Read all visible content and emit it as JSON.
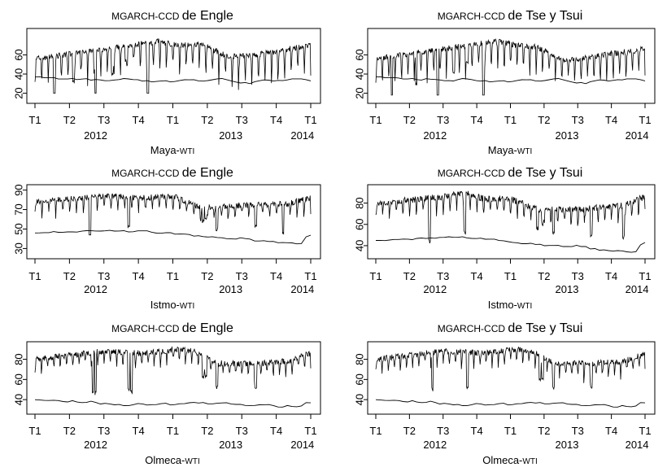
{
  "chart_data": [
    {
      "type": "line",
      "title": {
        "prefix": "MGARCH-CCD",
        "suffix": "de Engle"
      },
      "xlabel": {
        "prefix": "Maya-",
        "suffix": "WTI"
      },
      "x_ticks": [
        "T1",
        "T2",
        "T3",
        "T4",
        "T1",
        "T2",
        "T3",
        "T4",
        "T1"
      ],
      "year_labels": [
        "2012",
        "2013",
        "2014"
      ],
      "y_ticks": [
        20,
        40,
        60
      ],
      "ylim": [
        12,
        85
      ],
      "series": [
        {
          "name": "upper",
          "base": 62,
          "amp": 34,
          "floor": 8,
          "cycles": 42,
          "events": [
            [
              7,
              12
            ],
            [
              14,
              30
            ],
            [
              22,
              10
            ],
            [
              28,
              38
            ],
            [
              33,
              52
            ],
            [
              41,
              14
            ]
          ],
          "trend": [
            [
              0,
              -6
            ],
            [
              45,
              12
            ],
            [
              52,
              8
            ],
            [
              60,
              10
            ],
            [
              70,
              -4
            ],
            [
              80,
              -2
            ],
            [
              100,
              8
            ]
          ],
          "clampTop": 82,
          "seed": 3
        },
        {
          "name": "lower",
          "values": [
            37,
            37,
            36,
            36,
            36,
            35,
            35,
            35,
            35,
            34,
            35,
            35,
            34,
            34,
            34,
            33,
            33,
            34,
            34,
            35,
            35,
            34,
            34,
            33,
            33,
            32,
            32,
            33,
            33,
            32,
            32,
            33,
            34,
            34,
            34,
            33,
            33,
            33,
            34,
            35,
            35,
            34,
            33,
            32,
            31,
            31,
            30,
            32,
            33,
            34,
            34,
            33,
            33,
            33,
            34,
            35,
            35,
            35,
            34,
            33
          ]
        }
      ]
    },
    {
      "type": "line",
      "title": {
        "prefix": "MGARCH-CCD",
        "suffix": "de Tse y Tsui"
      },
      "xlabel": {
        "prefix": "Maya-",
        "suffix": "WTI"
      },
      "x_ticks": [
        "T1",
        "T2",
        "T3",
        "T4",
        "T1",
        "T2",
        "T3",
        "T4",
        "T1"
      ],
      "year_labels": [
        "2012",
        "2013",
        "2014"
      ],
      "y_ticks": [
        20,
        40,
        60
      ],
      "ylim": [
        12,
        85
      ],
      "series": [
        {
          "name": "upper",
          "base": 60,
          "amp": 33,
          "floor": 9,
          "cycles": 42,
          "events": [
            [
              6,
              14
            ],
            [
              15,
              28
            ],
            [
              23,
              12
            ],
            [
              29,
              40
            ],
            [
              34,
              50
            ],
            [
              40,
              13
            ]
          ],
          "trend": [
            [
              0,
              -4
            ],
            [
              45,
              14
            ],
            [
              52,
              10
            ],
            [
              60,
              8
            ],
            [
              70,
              -6
            ],
            [
              80,
              -2
            ],
            [
              100,
              6
            ]
          ],
          "clampTop": 83,
          "seed": 11
        },
        {
          "name": "lower",
          "values": [
            37,
            37,
            36,
            36,
            36,
            36,
            35,
            35,
            35,
            34,
            34,
            35,
            35,
            34,
            34,
            33,
            33,
            33,
            34,
            35,
            35,
            34,
            33,
            33,
            33,
            32,
            32,
            33,
            33,
            32,
            32,
            33,
            34,
            34,
            34,
            33,
            33,
            33,
            34,
            35,
            35,
            34,
            33,
            32,
            31,
            31,
            30,
            32,
            33,
            34,
            34,
            33,
            33,
            34,
            34,
            35,
            35,
            35,
            34,
            33
          ]
        }
      ]
    },
    {
      "type": "line",
      "title": {
        "prefix": "MGARCH-CCD",
        "suffix": "de Engle"
      },
      "xlabel": {
        "prefix": "Istmo-",
        "suffix": "WTI"
      },
      "x_ticks": [
        "T1",
        "T2",
        "T3",
        "T4",
        "T1",
        "T2",
        "T3",
        "T4",
        "T1"
      ],
      "year_labels": [
        "2012",
        "2013",
        "2014"
      ],
      "y_ticks": [
        30,
        50,
        70,
        90
      ],
      "ylim": [
        22,
        93
      ],
      "series": [
        {
          "name": "upper",
          "base": 78,
          "amp": 16,
          "floor": 18,
          "cycles": 40,
          "events": [
            [
              20,
              42
            ],
            [
              34,
              50
            ],
            [
              61,
              56
            ],
            [
              62,
              58
            ],
            [
              66,
              48
            ],
            [
              80,
              50
            ],
            [
              90,
              44
            ]
          ],
          "trend": [
            [
              0,
              0
            ],
            [
              25,
              6
            ],
            [
              40,
              4
            ],
            [
              50,
              6
            ],
            [
              60,
              -6
            ],
            [
              75,
              -4
            ],
            [
              92,
              -2
            ],
            [
              100,
              4
            ]
          ],
          "clampTop": 91,
          "seed": 5
        },
        {
          "name": "lower",
          "values": [
            46,
            46,
            46,
            46,
            47,
            47,
            47,
            47,
            47,
            47,
            48,
            48,
            48,
            48,
            48,
            48,
            49,
            48,
            48,
            48,
            47,
            47,
            48,
            48,
            48,
            47,
            46,
            46,
            46,
            46,
            45,
            45,
            45,
            44,
            43,
            43,
            42,
            42,
            42,
            41,
            41,
            40,
            40,
            40,
            41,
            40,
            40,
            38,
            38,
            38,
            37,
            37,
            36,
            36,
            36,
            36,
            35,
            35,
            42,
            44
          ]
        }
      ]
    },
    {
      "type": "line",
      "title": {
        "prefix": "MGARCH-CCD",
        "suffix": "de Tse y Tsui"
      },
      "xlabel": {
        "prefix": "Istmo-",
        "suffix": "WTI"
      },
      "x_ticks": [
        "T1",
        "T2",
        "T3",
        "T4",
        "T1",
        "T2",
        "T3",
        "T4",
        "T1"
      ],
      "year_labels": [
        "2012",
        "2013",
        "2014"
      ],
      "y_ticks": [
        40,
        60,
        80
      ],
      "ylim": [
        30,
        95
      ],
      "series": [
        {
          "name": "upper",
          "base": 80,
          "amp": 18,
          "floor": 20,
          "cycles": 40,
          "events": [
            [
              20,
              42
            ],
            [
              33,
              50
            ],
            [
              60,
              54
            ],
            [
              62,
              58
            ],
            [
              66,
              50
            ],
            [
              80,
              48
            ],
            [
              92,
              46
            ]
          ],
          "trend": [
            [
              0,
              0
            ],
            [
              25,
              6
            ],
            [
              33,
              10
            ],
            [
              40,
              4
            ],
            [
              50,
              4
            ],
            [
              60,
              -6
            ],
            [
              75,
              -6
            ],
            [
              92,
              -2
            ],
            [
              100,
              6
            ]
          ],
          "clampTop": 92,
          "seed": 17
        },
        {
          "name": "lower",
          "values": [
            45,
            45,
            45,
            45,
            46,
            46,
            46,
            46,
            46,
            47,
            47,
            47,
            47,
            47,
            48,
            48,
            48,
            48,
            48,
            48,
            47,
            47,
            47,
            47,
            46,
            46,
            46,
            45,
            45,
            44,
            43,
            43,
            42,
            42,
            42,
            41,
            41,
            40,
            40,
            40,
            40,
            39,
            39,
            39,
            40,
            39,
            39,
            37,
            37,
            36,
            36,
            35,
            35,
            35,
            35,
            34,
            34,
            34,
            41,
            43
          ]
        }
      ]
    },
    {
      "type": "line",
      "title": {
        "prefix": "MGARCH-CCD",
        "suffix": "de Engle"
      },
      "xlabel": {
        "prefix": "Olmeca-",
        "suffix": "WTI"
      },
      "x_ticks": [
        "T1",
        "T2",
        "T3",
        "T4",
        "T1",
        "T2",
        "T3",
        "T4",
        "T1"
      ],
      "year_labels": [
        "2012",
        "2013",
        "2014"
      ],
      "y_ticks": [
        40,
        60,
        80
      ],
      "ylim": [
        28,
        95
      ],
      "series": [
        {
          "name": "upper",
          "base": 82,
          "amp": 17,
          "floor": 22,
          "cycles": 44,
          "events": [
            [
              21,
              46
            ],
            [
              22,
              44
            ],
            [
              34,
              48
            ],
            [
              35,
              46
            ],
            [
              61,
              60
            ],
            [
              62,
              62
            ],
            [
              66,
              50
            ],
            [
              80,
              48
            ]
          ],
          "trend": [
            [
              0,
              -2
            ],
            [
              25,
              6
            ],
            [
              40,
              4
            ],
            [
              52,
              8
            ],
            [
              58,
              6
            ],
            [
              66,
              -6
            ],
            [
              80,
              -6
            ],
            [
              92,
              -4
            ],
            [
              100,
              4
            ]
          ],
          "clampTop": 92,
          "seed": 23
        },
        {
          "name": "lower",
          "values": [
            40,
            40,
            39,
            39,
            39,
            39,
            38,
            38,
            39,
            38,
            37,
            37,
            38,
            37,
            36,
            36,
            36,
            35,
            35,
            34,
            34,
            35,
            36,
            36,
            35,
            35,
            35,
            36,
            36,
            35,
            35,
            36,
            36,
            37,
            37,
            37,
            37,
            36,
            36,
            36,
            37,
            37,
            36,
            35,
            35,
            34,
            34,
            34,
            35,
            35,
            35,
            34,
            33,
            33,
            34,
            33,
            33,
            34,
            37,
            37
          ]
        }
      ]
    },
    {
      "type": "line",
      "title": {
        "prefix": "MGARCH-CCD",
        "suffix": "de Tse y Tsui"
      },
      "xlabel": {
        "prefix": "Olmeca-",
        "suffix": "WTI"
      },
      "x_ticks": [
        "T1",
        "T2",
        "T3",
        "T4",
        "T1",
        "T2",
        "T3",
        "T4",
        "T1"
      ],
      "year_labels": [
        "2012",
        "2013",
        "2014"
      ],
      "y_ticks": [
        40,
        60,
        80
      ],
      "ylim": [
        28,
        95
      ],
      "series": [
        {
          "name": "upper",
          "base": 82,
          "amp": 17,
          "floor": 22,
          "cycles": 44,
          "events": [
            [
              21,
              48
            ],
            [
              34,
              50
            ],
            [
              61,
              58
            ],
            [
              62,
              60
            ],
            [
              66,
              50
            ],
            [
              80,
              50
            ]
          ],
          "trend": [
            [
              0,
              -2
            ],
            [
              25,
              6
            ],
            [
              40,
              4
            ],
            [
              52,
              8
            ],
            [
              58,
              6
            ],
            [
              66,
              -6
            ],
            [
              80,
              -6
            ],
            [
              92,
              -4
            ],
            [
              100,
              4
            ]
          ],
          "clampTop": 92,
          "seed": 29
        },
        {
          "name": "lower",
          "values": [
            40,
            40,
            39,
            39,
            39,
            39,
            38,
            38,
            39,
            38,
            37,
            37,
            38,
            37,
            36,
            36,
            36,
            35,
            35,
            34,
            34,
            35,
            36,
            36,
            35,
            35,
            35,
            36,
            36,
            35,
            35,
            36,
            36,
            37,
            37,
            37,
            37,
            36,
            36,
            36,
            37,
            37,
            36,
            35,
            35,
            34,
            34,
            34,
            35,
            35,
            35,
            34,
            33,
            33,
            34,
            33,
            33,
            34,
            37,
            37
          ]
        }
      ]
    }
  ]
}
